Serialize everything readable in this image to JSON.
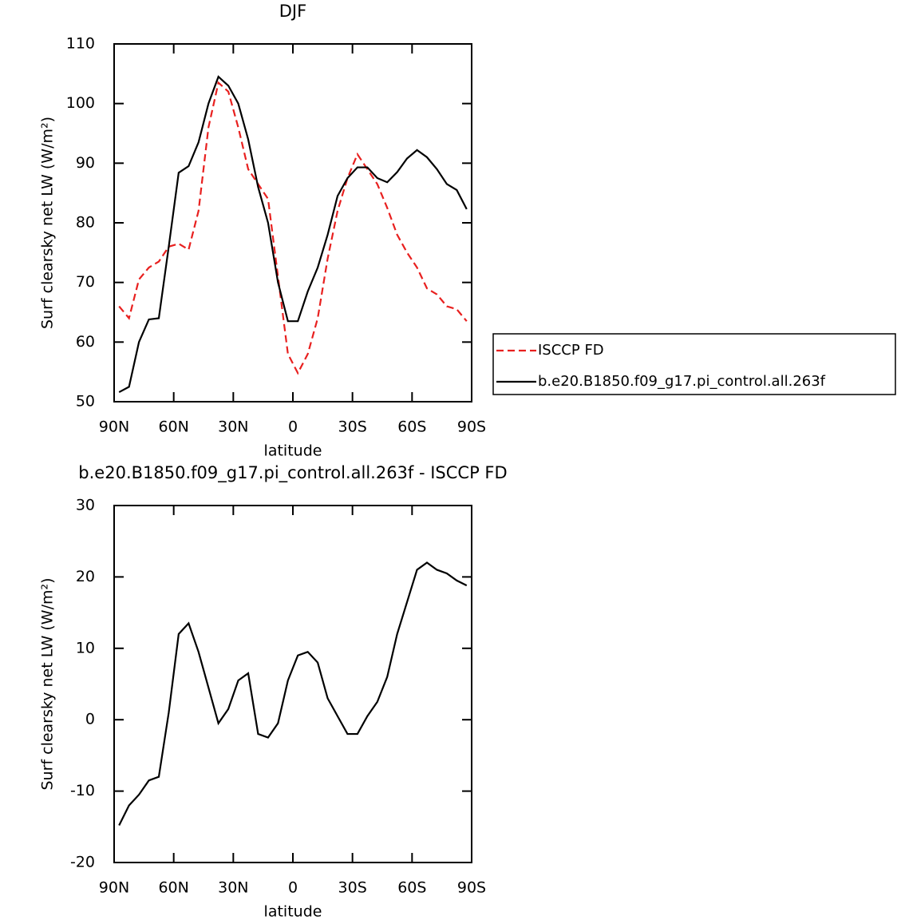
{
  "chart_data": [
    {
      "type": "line",
      "title": "DJF",
      "x_label": "latitude",
      "y_label": "Surf clearsky net LW (W/m²)",
      "x": [
        87.5,
        82.5,
        77.5,
        72.5,
        67.5,
        62.5,
        57.5,
        52.5,
        47.5,
        42.5,
        37.5,
        32.5,
        27.5,
        22.5,
        17.5,
        12.5,
        7.5,
        2.5,
        -2.5,
        -7.5,
        -12.5,
        -17.5,
        -22.5,
        -27.5,
        -32.5,
        -37.5,
        -42.5,
        -47.5,
        -52.5,
        -57.5,
        -62.5,
        -67.5,
        -72.5,
        -77.5,
        -82.5,
        -87.5
      ],
      "series": [
        {
          "name": "ISCCP FD",
          "color": "#e8201f",
          "line_style": "dashed",
          "values": [
            66,
            64,
            70.5,
            72.5,
            73.5,
            76,
            76.5,
            75.5,
            82,
            96,
            103.5,
            102,
            96,
            89,
            86.5,
            84,
            71,
            58,
            54.8,
            58,
            64,
            74,
            82,
            87.5,
            91.5,
            89,
            86.5,
            82.5,
            78,
            75,
            72.5,
            69,
            68,
            66,
            65.5,
            63.5
          ]
        },
        {
          "name": "b.e20.B1850.f09_g17.pi_control.all.263f",
          "color": "#000000",
          "line_style": "solid",
          "values": [
            51.6,
            52.5,
            60,
            63.8,
            64,
            76,
            88.4,
            89.5,
            93.5,
            100,
            104.5,
            103,
            100,
            94,
            86,
            80,
            70,
            63.5,
            63.5,
            68.5,
            72.5,
            78,
            84.5,
            87.5,
            89.3,
            89.3,
            87.5,
            86.8,
            88.5,
            90.8,
            92.2,
            91,
            89,
            86.5,
            85.5,
            82.3
          ]
        }
      ],
      "xlim": [
        90,
        -90
      ],
      "xticks": [
        {
          "value": 90,
          "label": "90N"
        },
        {
          "value": 60,
          "label": "60N"
        },
        {
          "value": 30,
          "label": "30N"
        },
        0,
        {
          "value": -30,
          "label": "30S"
        },
        {
          "value": -60,
          "label": "60S"
        },
        {
          "value": -90,
          "label": "90S"
        }
      ],
      "ylim": [
        50,
        110
      ],
      "yticks": [
        50,
        60,
        70,
        80,
        90,
        100,
        110
      ],
      "legend": "outside-right"
    },
    {
      "type": "line",
      "title": "b.e20.B1850.f09_g17.pi_control.all.263f - ISCCP FD",
      "x_label": "latitude",
      "y_label": "Surf clearsky net LW (W/m²)",
      "x": [
        87.5,
        82.5,
        77.5,
        72.5,
        67.5,
        62.5,
        57.5,
        52.5,
        47.5,
        42.5,
        37.5,
        32.5,
        27.5,
        22.5,
        17.5,
        12.5,
        7.5,
        2.5,
        -2.5,
        -7.5,
        -12.5,
        -17.5,
        -22.5,
        -27.5,
        -32.5,
        -37.5,
        -42.5,
        -47.5,
        -52.5,
        -57.5,
        -62.5,
        -67.5,
        -72.5,
        -77.5,
        -82.5,
        -87.5
      ],
      "values": [
        -14.8,
        -12,
        -10.5,
        -8.5,
        -8,
        1,
        12,
        13.5,
        9.5,
        4.5,
        -0.5,
        1.5,
        5.5,
        6.5,
        -2,
        -2.5,
        -0.5,
        5.5,
        9,
        9.5,
        8,
        3,
        0.5,
        -2,
        -2,
        0.5,
        2.5,
        6,
        12,
        16.5,
        21,
        22,
        21,
        20.5,
        19.5,
        18.8
      ],
      "color": "#000000",
      "xlim": [
        90,
        -90
      ],
      "xticks": [
        {
          "value": 90,
          "label": "90N"
        },
        {
          "value": 60,
          "label": "60N"
        },
        {
          "value": 30,
          "label": "30N"
        },
        0,
        {
          "value": -30,
          "label": "30S"
        },
        {
          "value": -60,
          "label": "60S"
        },
        {
          "value": -90,
          "label": "90S"
        }
      ],
      "ylim": [
        -20,
        30
      ],
      "yticks": [
        -20,
        -10,
        0,
        10,
        20,
        30
      ]
    }
  ]
}
